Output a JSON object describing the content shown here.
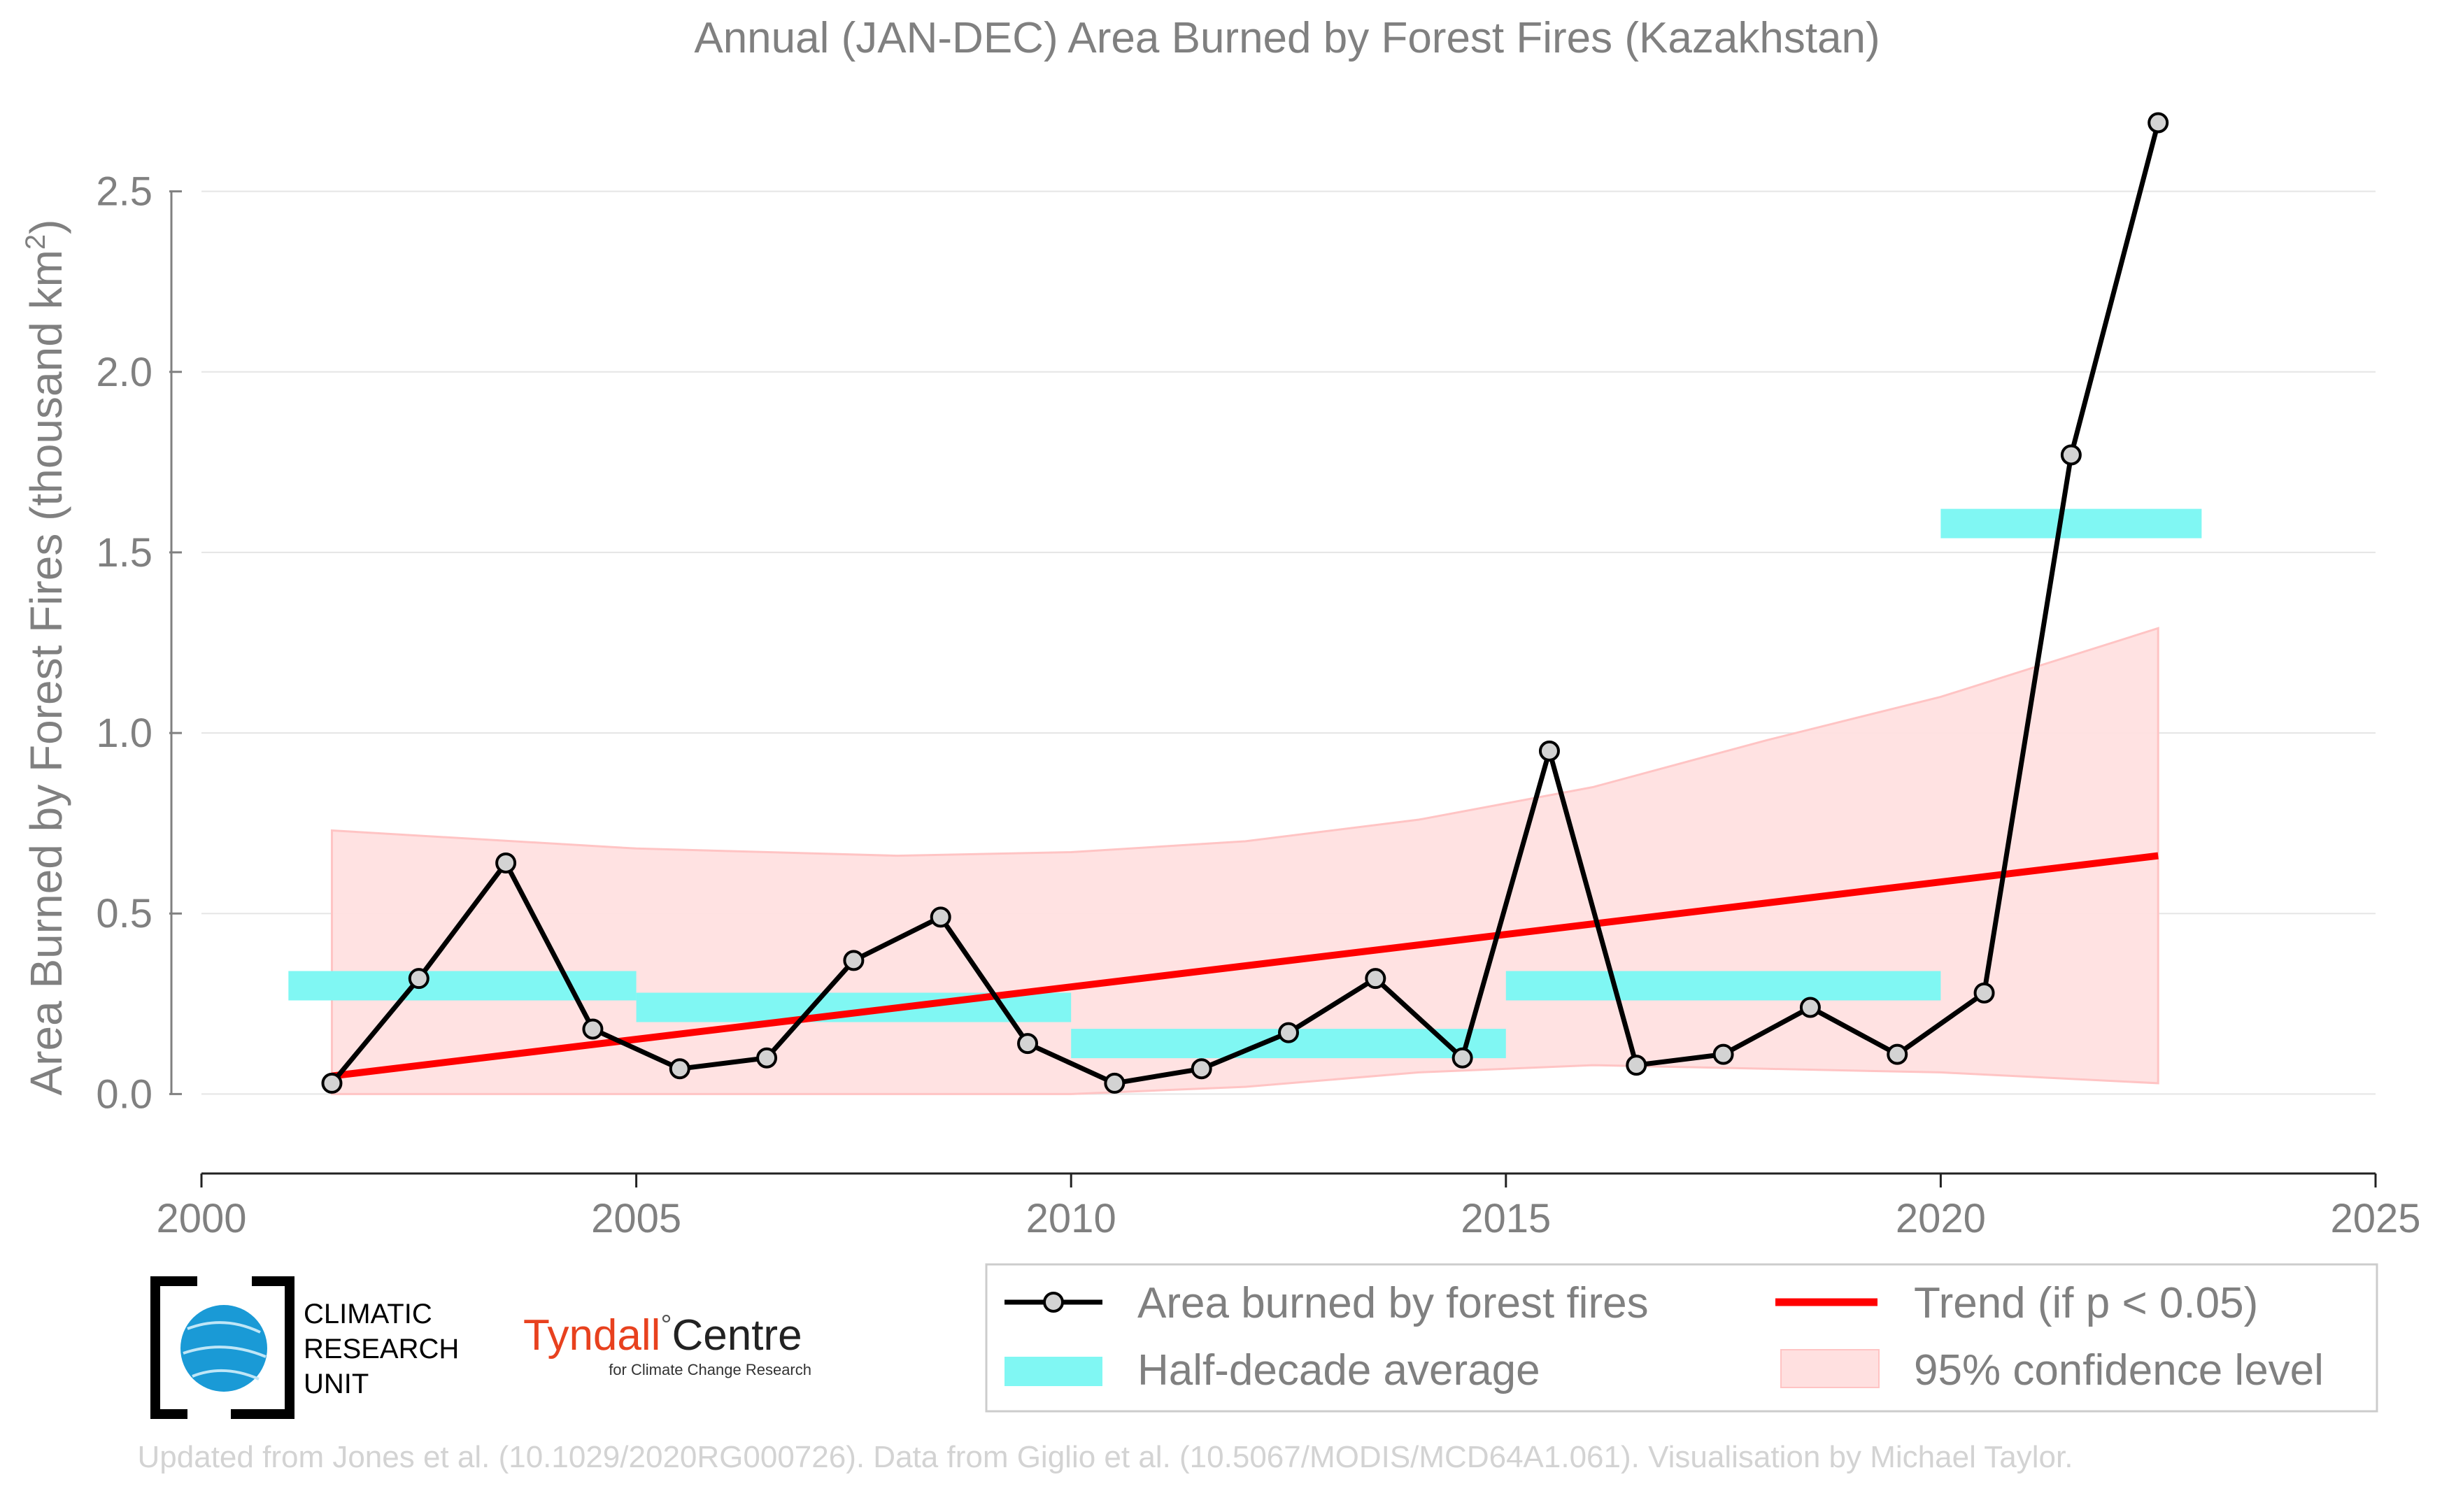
{
  "chart_data": {
    "type": "line",
    "title": "Annual (JAN-DEC) Area Burned by Forest Fires (Kazakhstan)",
    "xlabel": "",
    "ylabel": "Area Burned by Forest Fires (thousand km",
    "ylabel_sup": "2",
    "ylabel_close": ")",
    "xlim": [
      2000,
      2025
    ],
    "ylim": [
      -0.22,
      2.72
    ],
    "x_ticks": [
      2000,
      2005,
      2010,
      2015,
      2020,
      2025
    ],
    "y_ticks": [
      0.0,
      0.5,
      1.0,
      1.5,
      2.0,
      2.5
    ],
    "y_tick_labels": [
      "0.0",
      "0.5",
      "1.0",
      "1.5",
      "2.0",
      "2.5"
    ],
    "grid": "horizontal",
    "series": [
      {
        "name": "Area burned by forest fires",
        "color": "#000000",
        "marker_fill": "#d3d3d3",
        "x": [
          2001.5,
          2002.5,
          2003.5,
          2004.5,
          2005.5,
          2006.5,
          2007.5,
          2008.5,
          2009.5,
          2010.5,
          2011.5,
          2012.5,
          2013.5,
          2014.5,
          2015.5,
          2016.5,
          2017.5,
          2018.5,
          2019.5,
          2020.5,
          2021.5,
          2022.5
        ],
        "values": [
          0.03,
          0.32,
          0.64,
          0.18,
          0.07,
          0.1,
          0.37,
          0.49,
          0.14,
          0.03,
          0.07,
          0.17,
          0.32,
          0.1,
          0.95,
          0.08,
          0.11,
          0.24,
          0.11,
          0.28,
          1.77,
          2.69
        ]
      },
      {
        "name": "Trend (if p < 0.05)",
        "color": "#ff0000",
        "x": [
          2001.5,
          2022.5
        ],
        "values": [
          0.05,
          0.66
        ]
      }
    ],
    "half_decade_averages": {
      "name": "Half-decade average",
      "color": "#80f7f3",
      "segments": [
        {
          "x0": 2001,
          "x1": 2005,
          "value": 0.3
        },
        {
          "x0": 2005,
          "x1": 2010,
          "value": 0.24
        },
        {
          "x0": 2010,
          "x1": 2015,
          "value": 0.14
        },
        {
          "x0": 2015,
          "x1": 2020,
          "value": 0.3
        },
        {
          "x0": 2020,
          "x1": 2023,
          "value": 1.58
        }
      ]
    },
    "confidence_band": {
      "name": "95% confidence level",
      "color": "#ffe0e0",
      "x": [
        2001.5,
        2005,
        2008,
        2010,
        2012,
        2014,
        2016,
        2018,
        2020,
        2022.5
      ],
      "upper": [
        0.73,
        0.68,
        0.66,
        0.67,
        0.7,
        0.76,
        0.85,
        0.98,
        1.1,
        1.29
      ],
      "lower": [
        0.0,
        0.0,
        0.0,
        0.0,
        0.02,
        0.06,
        0.08,
        0.07,
        0.06,
        0.03
      ]
    },
    "legend": {
      "placement": "bottom-right",
      "entries": [
        "Area burned by forest fires",
        "Trend (if p < 0.05)",
        "Half-decade average",
        "95% confidence level"
      ]
    }
  },
  "logos": {
    "cru": [
      "CLIMATIC",
      "RESEARCH",
      "UNIT"
    ],
    "tyndall_main": "Tyndall",
    "tyndall_degree": "°",
    "tyndall_centre": "Centre",
    "tyndall_sub": "for Climate Change Research"
  },
  "credit": "Updated from Jones et al. (10.1029/2020RG000726). Data from Giglio et al. (10.5067/MODIS/MCD64A1.061). Visualisation by Michael Taylor."
}
